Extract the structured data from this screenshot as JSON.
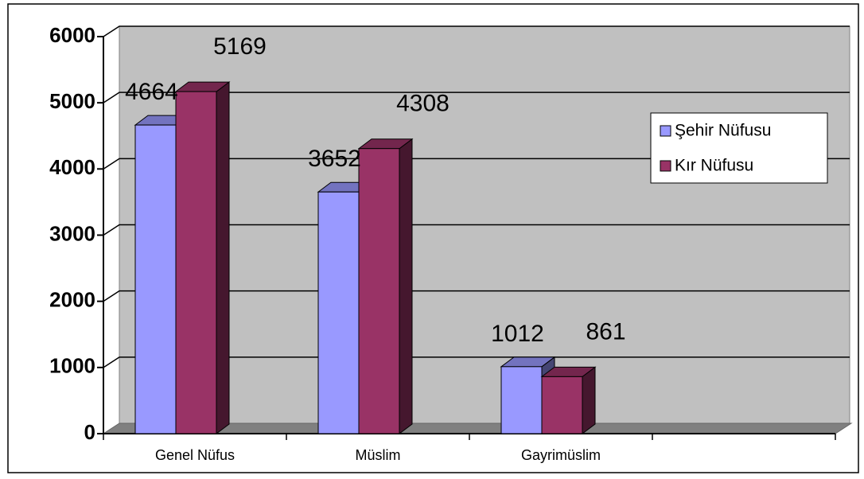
{
  "chart_data": {
    "type": "bar3d",
    "categories": [
      "Genel Nüfus",
      "Müslim",
      "Gayrimüslim",
      null
    ],
    "series": [
      {
        "name": "Şehir Nüfusu",
        "color": "#9999ff",
        "values": [
          4664,
          3652,
          1012,
          null
        ]
      },
      {
        "name": "Kır Nüfusu",
        "color": "#993366",
        "values": [
          5169,
          4308,
          861,
          null
        ]
      }
    ],
    "ylim": [
      0,
      6000
    ],
    "yticks": [
      0,
      1000,
      2000,
      3000,
      4000,
      5000,
      6000
    ],
    "grid": true,
    "legend": "right"
  }
}
